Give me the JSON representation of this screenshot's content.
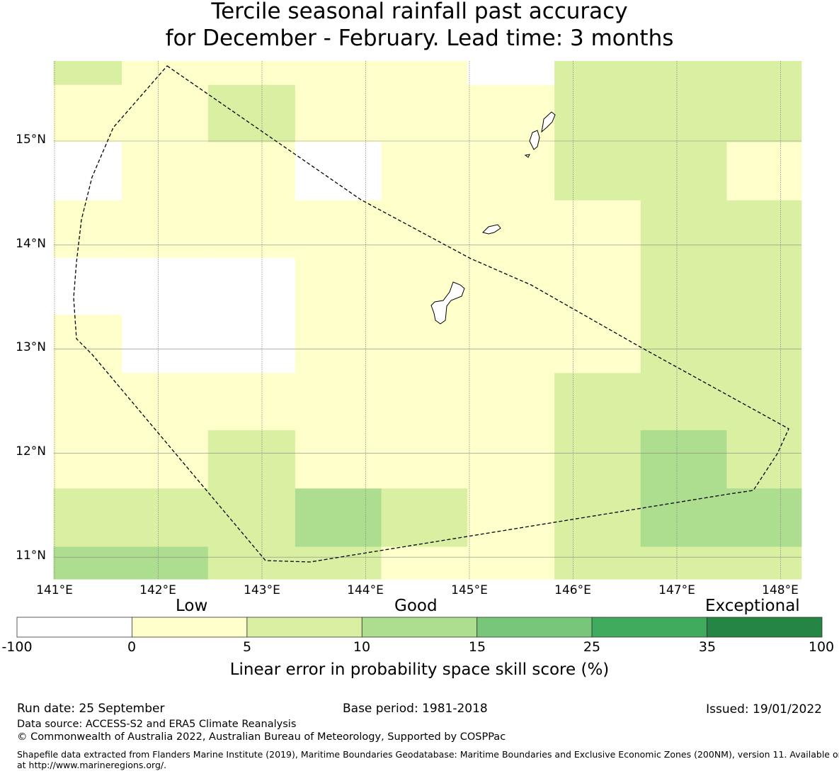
{
  "title": {
    "line1": "Tercile seasonal rainfall past accuracy",
    "line2": "for December - February. Lead time: 3 months"
  },
  "map": {
    "lat_ticks": [
      "15°N",
      "14°N",
      "13°N",
      "12°N",
      "11°N"
    ],
    "lon_ticks": [
      "141°E",
      "142°E",
      "143°E",
      "144°E",
      "145°E",
      "146°E",
      "147°E",
      "148°E"
    ],
    "region": "Mariana Islands exclusive economic zone",
    "grid_lon_edges": [
      140.99,
      141.65,
      142.48,
      143.32,
      144.15,
      144.98,
      145.82,
      146.65,
      147.48,
      148.2
    ],
    "grid_lat_edges": [
      15.77,
      15.54,
      14.99,
      14.43,
      13.88,
      13.33,
      12.77,
      12.22,
      11.66,
      11.1,
      10.79
    ],
    "grid_category_rows": [
      [
        2,
        1,
        1,
        1,
        1,
        0,
        2,
        2,
        2
      ],
      [
        1,
        1,
        2,
        1,
        1,
        1,
        2,
        2,
        2
      ],
      [
        0,
        1,
        1,
        0,
        1,
        1,
        2,
        2,
        1
      ],
      [
        1,
        1,
        1,
        1,
        1,
        1,
        1,
        2,
        2
      ],
      [
        0,
        0,
        0,
        1,
        1,
        1,
        1,
        2,
        2
      ],
      [
        1,
        0,
        0,
        1,
        1,
        1,
        1,
        2,
        2
      ],
      [
        1,
        1,
        1,
        1,
        1,
        1,
        2,
        2,
        2
      ],
      [
        1,
        1,
        2,
        1,
        1,
        1,
        2,
        3,
        2
      ],
      [
        2,
        2,
        2,
        3,
        2,
        1,
        2,
        3,
        3
      ],
      [
        3,
        3,
        2,
        2,
        1,
        1,
        2,
        2,
        2
      ]
    ],
    "colors": [
      "#ffffff",
      "#ffffcc",
      "#d9f0a3",
      "#addd8e",
      "#78c679",
      "#41ab5d",
      "#238443"
    ]
  },
  "colorbar": {
    "category_labels": [
      "Low",
      "Good",
      "Exceptional"
    ],
    "ticks": [
      "-100",
      "0",
      "5",
      "10",
      "15",
      "25",
      "35",
      "100"
    ],
    "label": "Linear error in probability space skill score (%)"
  },
  "footer": {
    "run_date": "Run date: 25 September",
    "base_period": "Base period: 1981-2018",
    "issued": "Issued: 19/01/2022",
    "data_source": "Data source: ACCESS-S2 and ERA5 Climate Reanalysis",
    "copyright": "© Commonwealth of Australia 2022, Australian Bureau of Meteorology, Supported by COSPPac",
    "shapefile_line1": "Shapefile data extracted from Flanders Marine Institute (2019), Maritime Boundaries Geodatabase: Maritime Boundaries and Exclusive Economic Zones (200NM), version 11. Available online",
    "shapefile_line2": "at http://www.marineregions.org/."
  }
}
